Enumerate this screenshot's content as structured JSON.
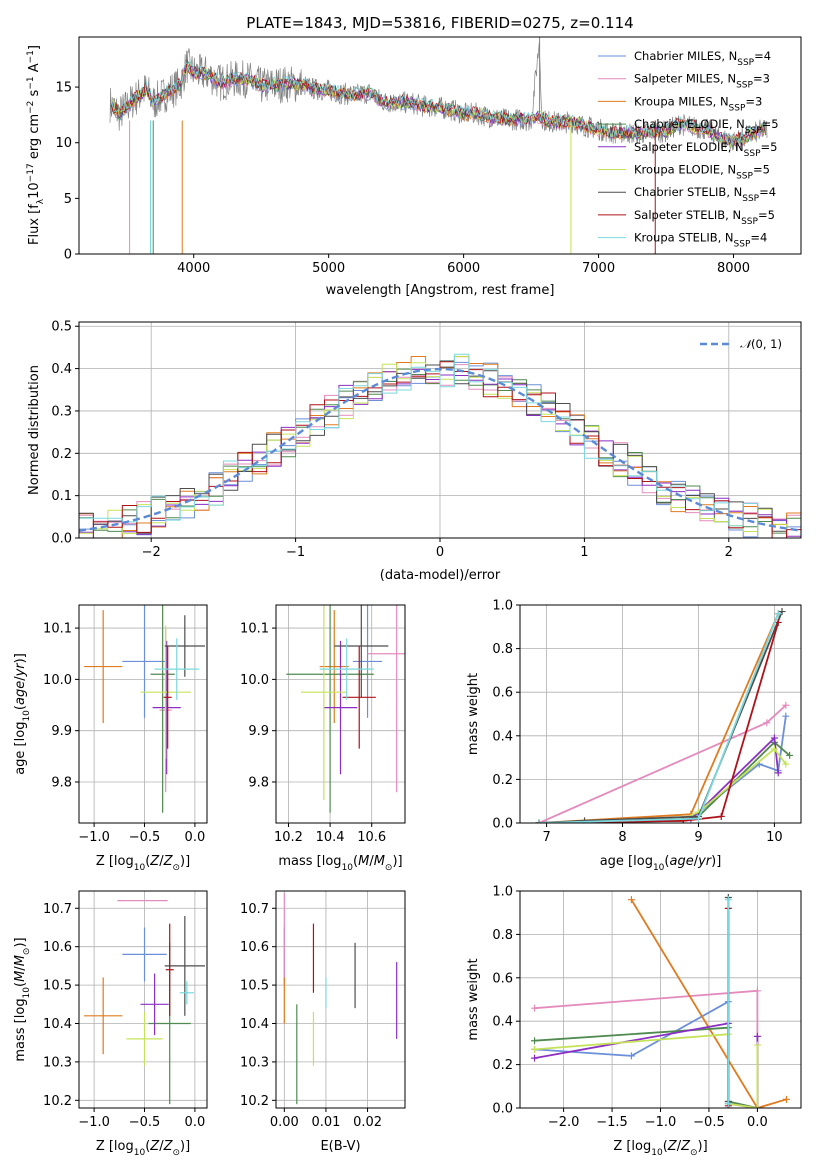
{
  "colors": {
    "Chabrier MILES": "#6b8fd9",
    "Salpeter MILES": "#e48bbd",
    "Kroupa MILES": "#e07b1f",
    "Chabrier ELODIE": "#4f8a4f",
    "Salpeter ELODIE": "#8b2fc4",
    "Kroupa ELODIE": "#c5e35a",
    "Chabrier STELIB": "#4d4d4d",
    "Salpeter STELIB": "#b0121b",
    "Kroupa STELIB": "#7ad8de",
    "normal": "#5b8ad6",
    "grid": "#b0b0b0"
  },
  "chart_data": [
    {
      "id": "spectrum",
      "type": "line",
      "title": "PLATE=1843, MJD=53816, FIBERID=0275, z=0.114",
      "xlabel": "wavelength [Angstrom, rest frame]",
      "ylabel": "Flux [f_λ10^-17 erg cm^-2 s^-1 A^-1]",
      "xlim": [
        3150,
        8500
      ],
      "ylim": [
        0,
        19.5
      ],
      "xticks": [
        4000,
        5000,
        6000,
        7000,
        8000
      ],
      "yticks": [
        0,
        5,
        10,
        15
      ],
      "grid": false,
      "legend_position": "top-right",
      "data_series": {
        "name": "data",
        "color": "#808080",
        "x": [
          3380,
          3450,
          3550,
          3650,
          3700,
          3800,
          3900,
          3950,
          4000,
          4100,
          4200,
          4300,
          4400,
          4500,
          4600,
          4700,
          4800,
          4900,
          5000,
          5100,
          5200,
          5300,
          5400,
          5500,
          5600,
          5700,
          5800,
          5900,
          6000,
          6100,
          6200,
          6300,
          6400,
          6500,
          6560,
          6580,
          6600,
          6700,
          6800,
          6900,
          7000,
          7100,
          7200,
          7300,
          7400,
          7500,
          7600,
          7700,
          7800,
          7900,
          8000,
          8100,
          8200,
          8250
        ],
        "y": [
          13.5,
          12.6,
          13.8,
          14.8,
          13.6,
          14.5,
          15.2,
          17.0,
          16.3,
          16.2,
          15.4,
          15.7,
          15.7,
          15.1,
          15.2,
          15.3,
          15.2,
          14.8,
          14.7,
          14.4,
          14.3,
          14.5,
          13.7,
          13.6,
          13.6,
          13.3,
          13.2,
          13.0,
          12.6,
          12.6,
          12.3,
          12.1,
          12.1,
          12.0,
          19.0,
          12.3,
          12.0,
          11.8,
          11.9,
          11.5,
          11.2,
          10.9,
          10.9,
          10.8,
          11.0,
          11.0,
          11.7,
          11.4,
          11.2,
          10.4,
          10.1,
          10.6,
          11.1,
          11.3
        ]
      },
      "model_series": [
        {
          "name": "Chabrier MILES, N_SSP=4"
        },
        {
          "name": "Salpeter MILES, N_SSP=3"
        },
        {
          "name": "Kroupa MILES, N_SSP=3"
        },
        {
          "name": "Chabrier ELODIE, N_SSP=5"
        },
        {
          "name": "Salpeter ELODIE, N_SSP=5"
        },
        {
          "name": "Kroupa ELODIE, N_SSP=5"
        },
        {
          "name": "Chabrier STELIB, N_SSP=4"
        },
        {
          "name": "Salpeter STELIB, N_SSP=5"
        },
        {
          "name": "Kroupa STELIB, N_SSP=4"
        }
      ]
    },
    {
      "id": "residuals",
      "type": "line",
      "xlabel": "(data-model)/error",
      "ylabel": "Normed distribution",
      "xlim": [
        -2.5,
        2.5
      ],
      "ylim": [
        0,
        0.51
      ],
      "xticks": [
        -2,
        -1,
        0,
        1,
        2
      ],
      "yticks": [
        0.0,
        0.1,
        0.2,
        0.3,
        0.4,
        0.5
      ],
      "grid": true,
      "legend_position": "top-right",
      "legend": [
        "N(0,1)"
      ],
      "bin_width": 0.1
    },
    {
      "id": "age_vs_z",
      "type": "scatter",
      "xlabel": "Z [log10(Z/Z⊙)]",
      "ylabel": "age  [log10(age/yr)]",
      "xlim": [
        -1.15,
        0.12
      ],
      "ylim": [
        9.72,
        10.145
      ],
      "xticks": [
        -1.0,
        -0.5,
        0.0
      ],
      "yticks": [
        9.8,
        9.9,
        10.0,
        10.1
      ],
      "grid": true,
      "points": [
        {
          "name": "Chabrier MILES",
          "x": -0.5,
          "xerr": 0.22,
          "y": 10.035,
          "yerr": 0.11
        },
        {
          "name": "Salpeter MILES",
          "x": -0.29,
          "xerr": 0.06,
          "y": 9.94,
          "yerr": 0.16
        },
        {
          "name": "Kroupa MILES",
          "x": -0.91,
          "xerr": 0.19,
          "y": 10.025,
          "yerr": 0.11
        },
        {
          "name": "Chabrier ELODIE",
          "x": -0.32,
          "xerr": 0.12,
          "y": 10.01,
          "yerr": 0.27
        },
        {
          "name": "Salpeter ELODIE",
          "x": -0.28,
          "xerr": 0.14,
          "y": 9.945,
          "yerr": 0.13
        },
        {
          "name": "Kroupa ELODIE",
          "x": -0.29,
          "xerr": 0.25,
          "y": 9.975,
          "yerr": 0.13
        },
        {
          "name": "Chabrier STELIB",
          "x": -0.1,
          "xerr": 0.2,
          "y": 10.065,
          "yerr": 0.06
        },
        {
          "name": "Salpeter STELIB",
          "x": -0.27,
          "xerr": 0.04,
          "y": 9.965,
          "yerr": 0.1
        },
        {
          "name": "Kroupa STELIB",
          "x": -0.18,
          "xerr": 0.22,
          "y": 10.02,
          "yerr": 0.06
        }
      ]
    },
    {
      "id": "age_vs_mass",
      "type": "scatter",
      "xlabel": "mass [log10(M/M⊙)]",
      "xlim": [
        10.14,
        10.76
      ],
      "ylim": [
        9.72,
        10.145
      ],
      "xticks": [
        10.2,
        10.4,
        10.6
      ],
      "yticks": [
        9.8,
        9.9,
        10.0,
        10.1
      ],
      "grid": true,
      "points": [
        {
          "name": "Chabrier MILES",
          "x": 10.58,
          "xerr": 0.07,
          "y": 10.035,
          "yerr": 0.11
        },
        {
          "name": "Salpeter MILES",
          "x": 10.72,
          "xerr": 0.14,
          "y": 10.05,
          "yerr": 0.27
        },
        {
          "name": "Kroupa MILES",
          "x": 10.42,
          "xerr": 0.07,
          "y": 10.025,
          "yerr": 0.11
        },
        {
          "name": "Chabrier ELODIE",
          "x": 10.4,
          "xerr": 0.21,
          "y": 10.01,
          "yerr": 0.27
        },
        {
          "name": "Salpeter ELODIE",
          "x": 10.45,
          "xerr": 0.08,
          "y": 9.945,
          "yerr": 0.13
        },
        {
          "name": "Kroupa ELODIE",
          "x": 10.37,
          "xerr": 0.11,
          "y": 9.975,
          "yerr": 0.21
        },
        {
          "name": "Chabrier STELIB",
          "x": 10.55,
          "xerr": 0.13,
          "y": 10.065,
          "yerr": 0.1
        },
        {
          "name": "Salpeter STELIB",
          "x": 10.54,
          "xerr": 0.08,
          "y": 9.965,
          "yerr": 0.1
        },
        {
          "name": "Kroupa STELIB",
          "x": 10.48,
          "xerr": 0.13,
          "y": 10.02,
          "yerr": 0.06
        }
      ]
    },
    {
      "id": "mass_weight_vs_age",
      "type": "line",
      "xlabel": "age  [log10(age/yr)]",
      "ylabel": "mass weight",
      "xlim": [
        6.65,
        10.35
      ],
      "ylim": [
        0,
        1
      ],
      "xticks": [
        7,
        8,
        9,
        10
      ],
      "yticks": [
        0.0,
        0.2,
        0.4,
        0.6,
        0.8,
        1.0
      ],
      "grid": true,
      "series": [
        {
          "name": "Chabrier MILES",
          "x": [
            6.9,
            8.9,
            9.8,
            10.05,
            10.15
          ],
          "y": [
            0.0,
            0.02,
            0.27,
            0.24,
            0.49
          ]
        },
        {
          "name": "Salpeter MILES",
          "x": [
            6.9,
            9.9,
            10.15
          ],
          "y": [
            0.0,
            0.46,
            0.54
          ]
        },
        {
          "name": "Kroupa MILES",
          "x": [
            6.9,
            8.9,
            10.05
          ],
          "y": [
            0.0,
            0.04,
            0.96
          ]
        },
        {
          "name": "Chabrier ELODIE",
          "x": [
            6.9,
            8.8,
            9.0,
            10.0,
            10.2
          ],
          "y": [
            0.0,
            0.01,
            0.03,
            0.37,
            0.31
          ]
        },
        {
          "name": "Salpeter ELODIE",
          "x": [
            6.9,
            8.9,
            9.0,
            10.0,
            10.05
          ],
          "y": [
            0.0,
            0.02,
            0.05,
            0.39,
            0.23
          ]
        },
        {
          "name": "Kroupa ELODIE",
          "x": [
            6.9,
            8.8,
            9.0,
            10.0,
            10.15
          ],
          "y": [
            0.0,
            0.02,
            0.05,
            0.34,
            0.27
          ]
        },
        {
          "name": "Chabrier STELIB",
          "x": [
            6.9,
            7.5,
            9.0,
            10.1
          ],
          "y": [
            0.0,
            0.01,
            0.03,
            0.97
          ]
        },
        {
          "name": "Salpeter STELIB",
          "x": [
            6.9,
            8.8,
            9.3,
            10.05
          ],
          "y": [
            0.0,
            0.01,
            0.03,
            0.92
          ]
        },
        {
          "name": "Kroupa STELIB",
          "x": [
            6.9,
            9.0,
            10.05
          ],
          "y": [
            0.0,
            0.02,
            0.96
          ]
        }
      ]
    },
    {
      "id": "mass_vs_z",
      "type": "scatter",
      "xlabel": "Z [log10(Z/Z⊙)]",
      "ylabel": "mass [log10(M/M⊙)]",
      "xlim": [
        -1.15,
        0.12
      ],
      "ylim": [
        10.18,
        10.745
      ],
      "xticks": [
        -1.0,
        -0.5,
        0.0
      ],
      "yticks": [
        10.2,
        10.3,
        10.4,
        10.5,
        10.6,
        10.7
      ],
      "grid": true,
      "points": [
        {
          "name": "Chabrier MILES",
          "x": -0.5,
          "xerr": 0.22,
          "y": 10.58,
          "yerr": 0.07
        },
        {
          "name": "Salpeter MILES",
          "x": -0.52,
          "xerr": 0.25,
          "y": 10.72,
          "yerr": 0.0
        },
        {
          "name": "Kroupa MILES",
          "x": -0.91,
          "xerr": 0.19,
          "y": 10.42,
          "yerr": 0.1
        },
        {
          "name": "Chabrier ELODIE",
          "x": -0.25,
          "xerr": 0.21,
          "y": 10.4,
          "yerr": 0.21
        },
        {
          "name": "Salpeter ELODIE",
          "x": -0.4,
          "xerr": 0.14,
          "y": 10.45,
          "yerr": 0.08
        },
        {
          "name": "Kroupa ELODIE",
          "x": -0.5,
          "xerr": 0.18,
          "y": 10.36,
          "yerr": 0.07
        },
        {
          "name": "Chabrier STELIB",
          "x": -0.1,
          "xerr": 0.2,
          "y": 10.55,
          "yerr": 0.13
        },
        {
          "name": "Salpeter STELIB",
          "x": -0.25,
          "xerr": 0.04,
          "y": 10.54,
          "yerr": 0.12
        },
        {
          "name": "Kroupa STELIB",
          "x": -0.08,
          "xerr": 0.07,
          "y": 10.48,
          "yerr": 0.03
        }
      ]
    },
    {
      "id": "mass_vs_ebv",
      "type": "scatter",
      "xlabel": "E(B-V)",
      "xlim": [
        -0.002,
        0.029
      ],
      "ylim": [
        10.18,
        10.745
      ],
      "xticks": [
        0.0,
        0.01,
        0.02
      ],
      "yticks": [
        10.2,
        10.3,
        10.4,
        10.5,
        10.6,
        10.7
      ],
      "grid": true,
      "points": [
        {
          "name": "Chabrier MILES",
          "x": 0.0,
          "y": 10.58,
          "yerr": 0.07
        },
        {
          "name": "Salpeter MILES",
          "x": 0.0,
          "y": 10.62,
          "yerr": 0.12
        },
        {
          "name": "Kroupa MILES",
          "x": 0.0,
          "y": 10.46,
          "yerr": 0.06
        },
        {
          "name": "Chabrier ELODIE",
          "x": 0.003,
          "y": 10.32,
          "yerr": 0.13
        },
        {
          "name": "Salpeter ELODIE",
          "x": 0.027,
          "y": 10.46,
          "yerr": 0.1
        },
        {
          "name": "Kroupa ELODIE",
          "x": 0.007,
          "y": 10.36,
          "yerr": 0.07
        },
        {
          "name": "Chabrier STELIB",
          "x": 0.017,
          "y": 10.525,
          "yerr": 0.085
        },
        {
          "name": "Salpeter STELIB",
          "x": 0.007,
          "y": 10.57,
          "yerr": 0.09
        },
        {
          "name": "Kroupa STELIB",
          "x": 0.01,
          "y": 10.48,
          "yerr": 0.04
        }
      ]
    },
    {
      "id": "mass_weight_vs_z",
      "type": "line",
      "xlabel": "Z [log10(Z/Z⊙)]",
      "ylabel": "mass weight",
      "xlim": [
        -2.45,
        0.45
      ],
      "ylim": [
        0,
        1
      ],
      "xticks": [
        -2.0,
        -1.5,
        -1.0,
        -0.5,
        0.0
      ],
      "yticks": [
        0.0,
        0.2,
        0.4,
        0.6,
        0.8,
        1.0
      ],
      "grid": true,
      "series": [
        {
          "name": "Chabrier MILES",
          "x": [
            -2.3,
            -1.3,
            -0.3,
            -0.3
          ],
          "y": [
            0.27,
            0.24,
            0.49,
            0.0
          ]
        },
        {
          "name": "Salpeter MILES",
          "x": [
            -2.3,
            0.0,
            0.0
          ],
          "y": [
            0.46,
            0.54,
            0.0
          ]
        },
        {
          "name": "Kroupa MILES",
          "x": [
            -1.3,
            0.0,
            0.3
          ],
          "y": [
            0.96,
            0.0,
            0.04
          ]
        },
        {
          "name": "Chabrier ELODIE",
          "x": [
            -2.3,
            -0.3,
            -0.3,
            0.0
          ],
          "y": [
            0.31,
            0.37,
            0.03,
            0.0
          ]
        },
        {
          "name": "Salpeter ELODIE",
          "x": [
            -2.3,
            -0.3,
            -0.3,
            0.0,
            0.0
          ],
          "y": [
            0.23,
            0.39,
            0.02,
            0.0,
            0.33
          ]
        },
        {
          "name": "Kroupa ELODIE",
          "x": [
            -2.3,
            -0.3,
            -0.3,
            0.0,
            0.0
          ],
          "y": [
            0.27,
            0.34,
            0.02,
            0.0,
            0.29
          ]
        },
        {
          "name": "Chabrier STELIB",
          "x": [
            -0.3,
            -0.3
          ],
          "y": [
            0.97,
            0.03
          ]
        },
        {
          "name": "Salpeter STELIB",
          "x": [
            -0.3,
            -0.3
          ],
          "y": [
            0.92,
            0.01
          ]
        },
        {
          "name": "Kroupa STELIB",
          "x": [
            -0.3,
            -0.3
          ],
          "y": [
            0.96,
            0.02
          ]
        }
      ]
    }
  ]
}
